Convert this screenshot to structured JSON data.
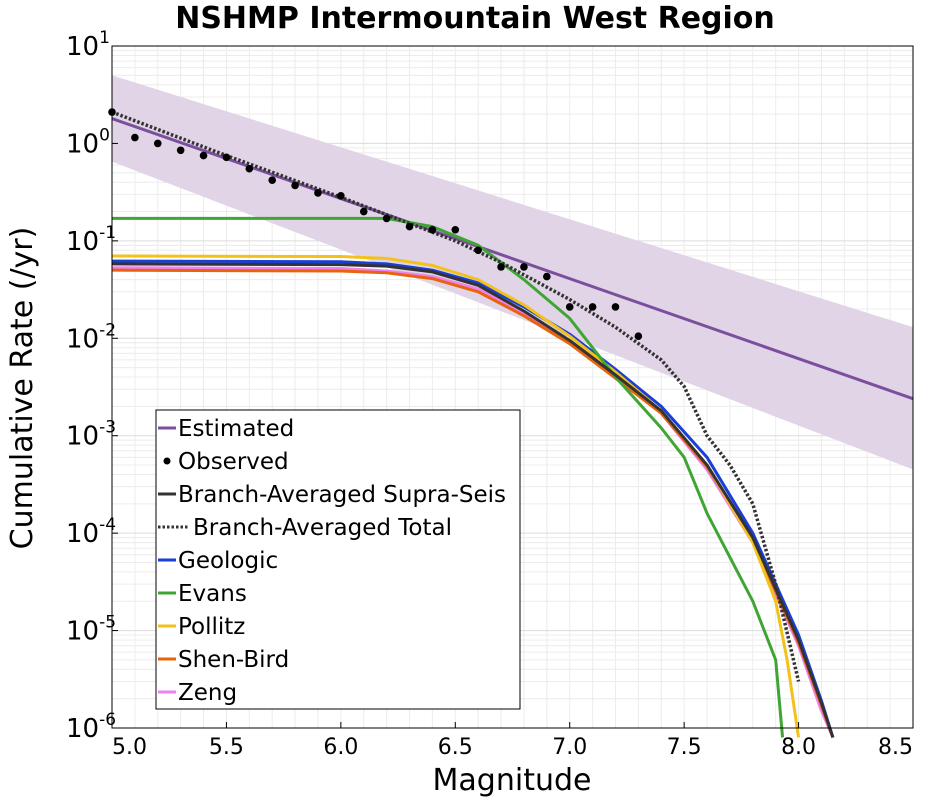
{
  "chart_data": {
    "type": "line",
    "title": "NSHMP Intermountain West Region",
    "xlabel": "Magnitude",
    "ylabel": "Cumulative Rate (/yr)",
    "xlim": [
      5.0,
      8.5
    ],
    "ylim": [
      1e-06,
      10
    ],
    "yscale": "log",
    "grid": true,
    "legend_position": "lower-left",
    "xticks": [
      "5.0",
      "5.5",
      "6.0",
      "6.5",
      "7.0",
      "7.5",
      "8.0",
      "8.5"
    ],
    "yticks": [
      {
        "base": "10",
        "exp": "1",
        "value": 10
      },
      {
        "base": "10",
        "exp": "0",
        "value": 1
      },
      {
        "base": "10",
        "exp": "-1",
        "value": 0.1
      },
      {
        "base": "10",
        "exp": "-2",
        "value": 0.01
      },
      {
        "base": "10",
        "exp": "-3",
        "value": 0.001
      },
      {
        "base": "10",
        "exp": "-4",
        "value": 0.0001
      },
      {
        "base": "10",
        "exp": "-5",
        "value": 1e-05
      },
      {
        "base": "10",
        "exp": "-6",
        "value": 1e-06
      }
    ],
    "band": {
      "name": "Estimated uncertainty",
      "color": "#e0d4e6",
      "x": [
        5.0,
        8.5
      ],
      "upper": [
        5.0,
        0.013
      ],
      "lower": [
        0.65,
        0.00045
      ]
    },
    "series": [
      {
        "name": "Estimated",
        "color": "#7b4f9d",
        "style": "solid",
        "width": 3,
        "x": [
          5.0,
          8.5
        ],
        "y": [
          1.8,
          0.0024
        ]
      },
      {
        "name": "Branch-Averaged Total",
        "color": "#333333",
        "style": "dotted",
        "width": 3.5,
        "x": [
          5.0,
          5.5,
          6.0,
          6.5,
          6.7,
          7.0,
          7.2,
          7.4,
          7.5,
          7.6,
          7.7,
          7.8,
          7.9,
          8.0
        ],
        "y": [
          2.1,
          0.75,
          0.28,
          0.1,
          0.06,
          0.025,
          0.013,
          0.006,
          0.0032,
          0.001,
          0.0005,
          0.0002,
          3e-05,
          3e-06
        ]
      },
      {
        "name": "Branch-Averaged Supra-Seis",
        "color": "#333333",
        "style": "solid",
        "width": 3,
        "x": [
          5.0,
          6.0,
          6.2,
          6.4,
          6.6,
          6.8,
          7.0,
          7.2,
          7.4,
          7.6,
          7.8,
          8.0,
          8.1,
          8.15
        ],
        "y": [
          0.058,
          0.057,
          0.055,
          0.048,
          0.035,
          0.019,
          0.0095,
          0.0042,
          0.0018,
          0.0005,
          9e-05,
          8e-06,
          1.8e-06,
          8e-07
        ]
      },
      {
        "name": "Geologic",
        "color": "#1a3fd6",
        "style": "solid",
        "width": 3,
        "x": [
          5.0,
          6.0,
          6.2,
          6.4,
          6.6,
          6.8,
          7.0,
          7.2,
          7.4,
          7.6,
          7.8,
          8.0,
          8.1,
          8.15
        ],
        "y": [
          0.062,
          0.061,
          0.058,
          0.05,
          0.037,
          0.021,
          0.011,
          0.0048,
          0.002,
          0.0006,
          0.0001,
          9e-06,
          1.9e-06,
          8e-07
        ]
      },
      {
        "name": "Evans",
        "color": "#3fa534",
        "style": "solid",
        "width": 3,
        "x": [
          5.0,
          6.2,
          6.4,
          6.6,
          6.8,
          7.0,
          7.2,
          7.4,
          7.5,
          7.6,
          7.8,
          7.9,
          7.93
        ],
        "y": [
          0.17,
          0.17,
          0.14,
          0.09,
          0.04,
          0.016,
          0.004,
          0.0012,
          0.0006,
          0.00016,
          2e-05,
          5e-06,
          8e-07
        ]
      },
      {
        "name": "Pollitz",
        "color": "#f2c21b",
        "style": "solid",
        "width": 3,
        "x": [
          5.0,
          6.0,
          6.2,
          6.4,
          6.6,
          6.8,
          7.0,
          7.2,
          7.4,
          7.6,
          7.8,
          7.9,
          7.95,
          8.0
        ],
        "y": [
          0.07,
          0.069,
          0.066,
          0.056,
          0.04,
          0.022,
          0.0105,
          0.0045,
          0.0018,
          0.0005,
          8e-05,
          2e-05,
          5e-06,
          8e-07
        ]
      },
      {
        "name": "Shen-Bird",
        "color": "#e8630c",
        "style": "solid",
        "width": 3,
        "x": [
          5.0,
          6.0,
          6.2,
          6.4,
          6.6,
          6.8,
          7.0,
          7.2,
          7.4,
          7.6,
          7.8,
          8.0,
          8.1,
          8.15
        ],
        "y": [
          0.05,
          0.049,
          0.047,
          0.041,
          0.03,
          0.017,
          0.0088,
          0.0039,
          0.0017,
          0.00048,
          8.5e-05,
          7.5e-06,
          1.7e-06,
          8e-07
        ]
      },
      {
        "name": "Zeng",
        "color": "#ee82ee",
        "style": "solid",
        "width": 3,
        "x": [
          5.0,
          6.0,
          6.2,
          6.4,
          6.6,
          6.8,
          7.0,
          7.2,
          7.4,
          7.6,
          7.8,
          8.0,
          8.1,
          8.15
        ],
        "y": [
          0.053,
          0.052,
          0.049,
          0.043,
          0.032,
          0.018,
          0.0092,
          0.0041,
          0.0017,
          0.00045,
          8e-05,
          7e-06,
          1.5e-06,
          8e-07
        ]
      },
      {
        "name": "Observed",
        "color": "#000000",
        "style": "markers",
        "x": [
          5.0,
          5.1,
          5.2,
          5.3,
          5.4,
          5.5,
          5.6,
          5.7,
          5.8,
          5.9,
          6.0,
          6.1,
          6.2,
          6.3,
          6.4,
          6.5,
          6.6,
          6.7,
          6.8,
          6.9,
          7.0,
          7.1,
          7.2,
          7.3
        ],
        "y": [
          2.1,
          1.15,
          1.0,
          0.85,
          0.75,
          0.72,
          0.55,
          0.42,
          0.37,
          0.31,
          0.29,
          0.2,
          0.17,
          0.14,
          0.13,
          0.13,
          0.08,
          0.054,
          0.054,
          0.043,
          0.021,
          0.021,
          0.021,
          0.0105
        ]
      }
    ],
    "legend": [
      {
        "label": "Estimated",
        "color": "#7b4f9d",
        "kind": "line"
      },
      {
        "label": "Observed",
        "color": "#000000",
        "kind": "marker"
      },
      {
        "label": "Branch-Averaged Supra-Seis",
        "color": "#333333",
        "kind": "line"
      },
      {
        "label": "Branch-Averaged Total",
        "color": "#333333",
        "kind": "dotted"
      },
      {
        "label": "Geologic",
        "color": "#1a3fd6",
        "kind": "line"
      },
      {
        "label": "Evans",
        "color": "#3fa534",
        "kind": "line"
      },
      {
        "label": "Pollitz",
        "color": "#f2c21b",
        "kind": "line"
      },
      {
        "label": "Shen-Bird",
        "color": "#e8630c",
        "kind": "line"
      },
      {
        "label": "Zeng",
        "color": "#ee82ee",
        "kind": "line"
      }
    ]
  }
}
